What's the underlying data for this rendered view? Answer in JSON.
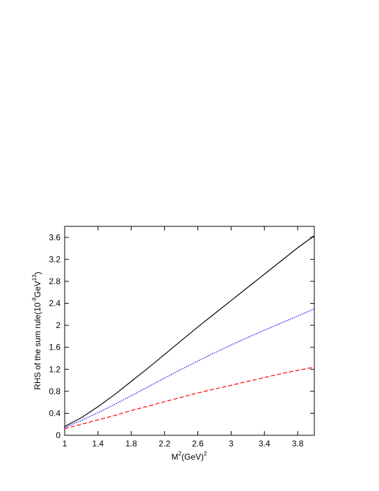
{
  "chart_data": {
    "type": "line",
    "xlabel": [
      "M",
      "2",
      "(GeV)",
      "2"
    ],
    "ylabel": [
      "RHS of the sum rule(10",
      "-9",
      "GeV",
      "13",
      ")"
    ],
    "x": [
      1,
      1.2,
      1.4,
      1.6,
      1.8,
      2.0,
      2.2,
      2.4,
      2.6,
      2.8,
      3.0,
      3.2,
      3.4,
      3.6,
      3.8,
      4.0
    ],
    "series": [
      {
        "color": "#000000",
        "dash": "solid",
        "values": [
          0.16,
          0.32,
          0.52,
          0.74,
          0.98,
          1.22,
          1.47,
          1.72,
          1.97,
          2.21,
          2.45,
          2.69,
          2.93,
          3.17,
          3.41,
          3.63
        ]
      },
      {
        "color": "#0000ff",
        "dash": "dotted",
        "values": [
          0.14,
          0.27,
          0.41,
          0.56,
          0.72,
          0.88,
          1.04,
          1.2,
          1.35,
          1.5,
          1.64,
          1.78,
          1.91,
          2.04,
          2.17,
          2.3
        ]
      },
      {
        "color": "#ff0000",
        "dash": "dashed",
        "values": [
          0.12,
          0.2,
          0.28,
          0.36,
          0.45,
          0.53,
          0.61,
          0.69,
          0.77,
          0.84,
          0.91,
          0.98,
          1.05,
          1.12,
          1.18,
          1.24
        ]
      }
    ],
    "xlim": [
      1,
      4
    ],
    "ylim": [
      0,
      3.8
    ],
    "xticks": [
      1,
      1.4,
      1.8,
      2.2,
      2.6,
      3,
      3.4,
      3.8
    ],
    "yticks": [
      0,
      0.4,
      0.8,
      1.2,
      1.6,
      2,
      2.4,
      2.8,
      3.2,
      3.6
    ]
  }
}
